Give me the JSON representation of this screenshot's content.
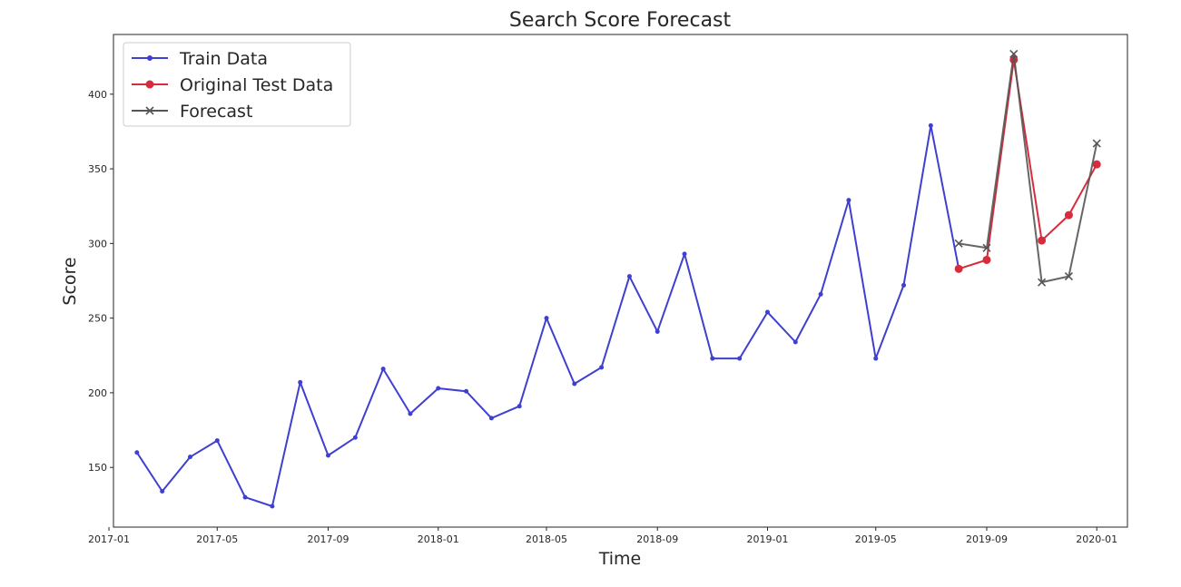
{
  "chart_data": {
    "type": "line",
    "title": "Search Score Forecast",
    "xlabel": "Time",
    "ylabel": "Score",
    "x_axis_type": "date",
    "xlim": [
      "2017-01-06",
      "2020-02-04"
    ],
    "ylim": [
      110,
      440
    ],
    "xticks": [
      "2017-01",
      "2017-05",
      "2017-09",
      "2018-01",
      "2018-05",
      "2018-09",
      "2019-01",
      "2019-05",
      "2019-09",
      "2020-01"
    ],
    "yticks": [
      150,
      200,
      250,
      300,
      350,
      400
    ],
    "grid": false,
    "legend_position": "top-left",
    "series": [
      {
        "name": "Train Data",
        "color": "#3f3fd1",
        "marker": "dot",
        "x": [
          "2017-02-01",
          "2017-03-01",
          "2017-04-01",
          "2017-05-01",
          "2017-06-01",
          "2017-07-01",
          "2017-08-01",
          "2017-09-01",
          "2017-10-01",
          "2017-11-01",
          "2017-12-01",
          "2018-01-01",
          "2018-02-01",
          "2018-03-01",
          "2018-04-01",
          "2018-05-01",
          "2018-06-01",
          "2018-07-01",
          "2018-08-01",
          "2018-09-01",
          "2018-10-01",
          "2018-11-01",
          "2018-12-01",
          "2019-01-01",
          "2019-02-01",
          "2019-03-01",
          "2019-04-01",
          "2019-05-01",
          "2019-06-01",
          "2019-07-01",
          "2019-08-01"
        ],
        "y": [
          160,
          134,
          157,
          168,
          130,
          124,
          207,
          158,
          170,
          216,
          186,
          203,
          201,
          183,
          191,
          250,
          206,
          217,
          278,
          241,
          293,
          223,
          223,
          254,
          234,
          266,
          329,
          223,
          272,
          379,
          283
        ]
      },
      {
        "name": "Original Test Data",
        "color": "#d62c3c",
        "marker": "circle",
        "x": [
          "2019-08-01",
          "2019-09-01",
          "2019-10-01",
          "2019-11-01",
          "2019-12-01",
          "2020-01-01"
        ],
        "y": [
          283,
          289,
          423,
          302,
          319,
          353
        ]
      },
      {
        "name": "Forecast",
        "color": "#555555",
        "marker": "x",
        "x": [
          "2019-08-01",
          "2019-09-01",
          "2019-10-01",
          "2019-11-01",
          "2019-12-01",
          "2020-01-01"
        ],
        "y": [
          300,
          297,
          427,
          274,
          278,
          367
        ]
      }
    ]
  }
}
